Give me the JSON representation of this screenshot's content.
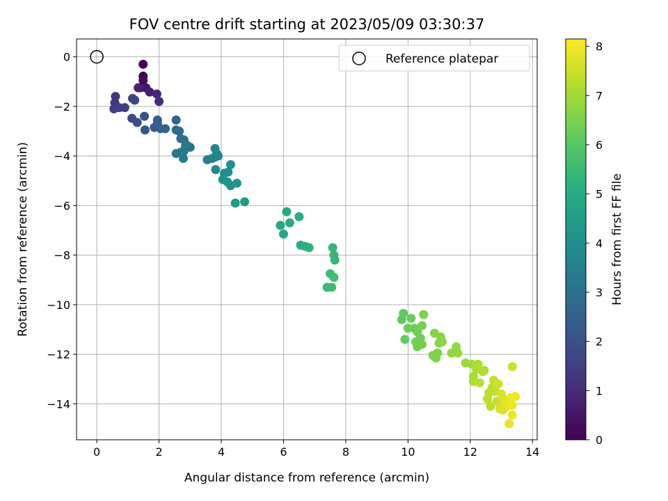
{
  "chart_data": {
    "type": "scatter",
    "title": "FOV centre drift starting at 2023/05/09 03:30:37",
    "xlabel": "Angular distance from reference (arcmin)",
    "ylabel": "Rotation from reference (arcmin)",
    "xlim": [
      -0.65,
      14.15
    ],
    "ylim": [
      -15.45,
      0.72
    ],
    "xticks": [
      0,
      2,
      4,
      6,
      8,
      10,
      12,
      14
    ],
    "yticks": [
      0,
      -2,
      -4,
      -6,
      -8,
      -10,
      -12,
      -14
    ],
    "grid": true,
    "legend": {
      "placement": "top-right",
      "entries": [
        "Reference platepar"
      ]
    },
    "reference_point": {
      "x": 0,
      "y": 0
    },
    "colorbar": {
      "label": "Hours from first FF file",
      "range": [
        0,
        8.15
      ],
      "ticks": [
        0,
        1,
        2,
        3,
        4,
        5,
        6,
        7,
        8
      ],
      "colormap": "viridis"
    },
    "points": [
      {
        "x": 1.49,
        "y": -0.3,
        "h": 0.0
      },
      {
        "x": 1.49,
        "y": -0.78,
        "h": 0.1
      },
      {
        "x": 1.49,
        "y": -0.95,
        "h": 0.2
      },
      {
        "x": 1.4,
        "y": -1.25,
        "h": 0.4
      },
      {
        "x": 1.58,
        "y": -1.25,
        "h": 0.5
      },
      {
        "x": 1.7,
        "y": -1.42,
        "h": 0.7
      },
      {
        "x": 1.33,
        "y": -1.25,
        "h": 0.8
      },
      {
        "x": 1.93,
        "y": -1.5,
        "h": 0.9
      },
      {
        "x": 2.0,
        "y": -1.8,
        "h": 1.0
      },
      {
        "x": 0.6,
        "y": -1.6,
        "h": 1.2
      },
      {
        "x": 0.58,
        "y": -1.85,
        "h": 1.3
      },
      {
        "x": 0.55,
        "y": -2.1,
        "h": 1.4
      },
      {
        "x": 0.72,
        "y": -2.05,
        "h": 1.45
      },
      {
        "x": 0.9,
        "y": -2.05,
        "h": 1.5
      },
      {
        "x": 1.15,
        "y": -1.68,
        "h": 1.6
      },
      {
        "x": 1.22,
        "y": -1.75,
        "h": 1.7
      },
      {
        "x": 1.13,
        "y": -2.48,
        "h": 1.8
      },
      {
        "x": 1.3,
        "y": -2.65,
        "h": 1.9
      },
      {
        "x": 1.53,
        "y": -2.4,
        "h": 2.0
      },
      {
        "x": 1.55,
        "y": -2.95,
        "h": 2.1
      },
      {
        "x": 1.85,
        "y": -2.85,
        "h": 2.2
      },
      {
        "x": 1.95,
        "y": -2.55,
        "h": 2.3
      },
      {
        "x": 1.95,
        "y": -2.7,
        "h": 2.4
      },
      {
        "x": 2.05,
        "y": -2.9,
        "h": 2.5
      },
      {
        "x": 2.2,
        "y": -2.9,
        "h": 2.6
      },
      {
        "x": 2.55,
        "y": -2.55,
        "h": 2.7
      },
      {
        "x": 2.55,
        "y": -2.95,
        "h": 2.8
      },
      {
        "x": 2.65,
        "y": -3.0,
        "h": 2.85
      },
      {
        "x": 2.7,
        "y": -3.3,
        "h": 2.9
      },
      {
        "x": 2.8,
        "y": -3.35,
        "h": 3.0
      },
      {
        "x": 2.88,
        "y": -3.55,
        "h": 3.05
      },
      {
        "x": 3.0,
        "y": -3.65,
        "h": 3.1
      },
      {
        "x": 2.55,
        "y": -3.9,
        "h": 3.15
      },
      {
        "x": 2.7,
        "y": -3.85,
        "h": 3.2
      },
      {
        "x": 2.8,
        "y": -3.8,
        "h": 3.25
      },
      {
        "x": 2.85,
        "y": -3.6,
        "h": 3.3
      },
      {
        "x": 2.78,
        "y": -4.1,
        "h": 3.35
      },
      {
        "x": 3.55,
        "y": -4.15,
        "h": 3.5
      },
      {
        "x": 3.7,
        "y": -4.1,
        "h": 3.55
      },
      {
        "x": 3.8,
        "y": -4.05,
        "h": 3.6
      },
      {
        "x": 3.8,
        "y": -3.7,
        "h": 3.65
      },
      {
        "x": 3.9,
        "y": -4.0,
        "h": 3.7
      },
      {
        "x": 3.85,
        "y": -3.9,
        "h": 3.75
      },
      {
        "x": 3.82,
        "y": -4.55,
        "h": 3.8
      },
      {
        "x": 4.1,
        "y": -4.7,
        "h": 3.9
      },
      {
        "x": 4.22,
        "y": -4.65,
        "h": 3.95
      },
      {
        "x": 4.3,
        "y": -4.35,
        "h": 4.0
      },
      {
        "x": 4.05,
        "y": -4.95,
        "h": 4.05
      },
      {
        "x": 4.2,
        "y": -5.05,
        "h": 4.1
      },
      {
        "x": 4.3,
        "y": -5.2,
        "h": 4.15
      },
      {
        "x": 4.5,
        "y": -5.1,
        "h": 4.2
      },
      {
        "x": 4.45,
        "y": -5.9,
        "h": 4.35
      },
      {
        "x": 4.75,
        "y": -5.85,
        "h": 4.45
      },
      {
        "x": 5.9,
        "y": -6.8,
        "h": 4.85
      },
      {
        "x": 6.0,
        "y": -7.15,
        "h": 4.9
      },
      {
        "x": 6.1,
        "y": -6.25,
        "h": 4.95
      },
      {
        "x": 6.2,
        "y": -6.7,
        "h": 5.0
      },
      {
        "x": 6.5,
        "y": -6.45,
        "h": 5.05
      },
      {
        "x": 6.55,
        "y": -7.6,
        "h": 5.1
      },
      {
        "x": 6.7,
        "y": -7.65,
        "h": 5.15
      },
      {
        "x": 6.82,
        "y": -7.7,
        "h": 5.2
      },
      {
        "x": 7.4,
        "y": -9.3,
        "h": 5.45
      },
      {
        "x": 7.55,
        "y": -9.3,
        "h": 5.5
      },
      {
        "x": 7.5,
        "y": -8.75,
        "h": 5.55
      },
      {
        "x": 7.62,
        "y": -8.9,
        "h": 5.6
      },
      {
        "x": 7.58,
        "y": -7.7,
        "h": 5.35
      },
      {
        "x": 7.62,
        "y": -8.0,
        "h": 5.38
      },
      {
        "x": 7.65,
        "y": -8.2,
        "h": 5.4
      },
      {
        "x": 9.8,
        "y": -10.6,
        "h": 6.1
      },
      {
        "x": 9.85,
        "y": -10.35,
        "h": 6.12
      },
      {
        "x": 9.9,
        "y": -11.4,
        "h": 6.2
      },
      {
        "x": 10.0,
        "y": -10.95,
        "h": 6.25
      },
      {
        "x": 10.1,
        "y": -10.55,
        "h": 6.28
      },
      {
        "x": 10.2,
        "y": -10.95,
        "h": 6.3
      },
      {
        "x": 10.3,
        "y": -11.1,
        "h": 6.32
      },
      {
        "x": 10.25,
        "y": -11.5,
        "h": 6.35
      },
      {
        "x": 10.3,
        "y": -11.7,
        "h": 6.38
      },
      {
        "x": 10.4,
        "y": -11.35,
        "h": 6.4
      },
      {
        "x": 10.45,
        "y": -11.6,
        "h": 6.42
      },
      {
        "x": 10.45,
        "y": -10.85,
        "h": 6.45
      },
      {
        "x": 10.5,
        "y": -10.4,
        "h": 6.48
      },
      {
        "x": 10.8,
        "y": -12.05,
        "h": 6.55
      },
      {
        "x": 10.9,
        "y": -12.15,
        "h": 6.58
      },
      {
        "x": 10.95,
        "y": -11.95,
        "h": 6.6
      },
      {
        "x": 10.85,
        "y": -11.15,
        "h": 6.62
      },
      {
        "x": 11.0,
        "y": -11.55,
        "h": 6.65
      },
      {
        "x": 11.05,
        "y": -11.3,
        "h": 6.68
      },
      {
        "x": 11.1,
        "y": -11.5,
        "h": 6.7
      },
      {
        "x": 11.4,
        "y": -11.95,
        "h": 6.78
      },
      {
        "x": 11.55,
        "y": -11.7,
        "h": 6.8
      },
      {
        "x": 11.6,
        "y": -11.95,
        "h": 6.82
      },
      {
        "x": 11.85,
        "y": -12.35,
        "h": 6.95
      },
      {
        "x": 12.05,
        "y": -12.4,
        "h": 7.0
      },
      {
        "x": 12.1,
        "y": -12.9,
        "h": 7.05
      },
      {
        "x": 12.2,
        "y": -12.6,
        "h": 7.1
      },
      {
        "x": 12.25,
        "y": -12.4,
        "h": 7.12
      },
      {
        "x": 12.4,
        "y": -12.7,
        "h": 7.15
      },
      {
        "x": 12.45,
        "y": -12.65,
        "h": 7.18
      },
      {
        "x": 12.1,
        "y": -13.1,
        "h": 7.2
      },
      {
        "x": 12.3,
        "y": -13.15,
        "h": 7.25
      },
      {
        "x": 12.55,
        "y": -13.8,
        "h": 7.3
      },
      {
        "x": 12.65,
        "y": -14.1,
        "h": 7.35
      },
      {
        "x": 12.7,
        "y": -13.35,
        "h": 7.38
      },
      {
        "x": 12.75,
        "y": -13.05,
        "h": 7.4
      },
      {
        "x": 12.8,
        "y": -13.5,
        "h": 7.45
      },
      {
        "x": 12.85,
        "y": -13.9,
        "h": 7.5
      },
      {
        "x": 12.9,
        "y": -13.2,
        "h": 7.55
      },
      {
        "x": 12.95,
        "y": -14.2,
        "h": 7.6
      },
      {
        "x": 13.0,
        "y": -13.6,
        "h": 7.65
      },
      {
        "x": 13.05,
        "y": -14.25,
        "h": 7.7
      },
      {
        "x": 13.1,
        "y": -13.85,
        "h": 7.75
      },
      {
        "x": 13.15,
        "y": -14.0,
        "h": 7.8
      },
      {
        "x": 13.2,
        "y": -14.1,
        "h": 7.85
      },
      {
        "x": 13.25,
        "y": -14.8,
        "h": 7.9
      },
      {
        "x": 13.3,
        "y": -13.75,
        "h": 7.92
      },
      {
        "x": 13.35,
        "y": -14.45,
        "h": 7.95
      },
      {
        "x": 13.35,
        "y": -14.05,
        "h": 7.98
      },
      {
        "x": 13.45,
        "y": -13.7,
        "h": 8.05
      },
      {
        "x": 13.35,
        "y": -12.5,
        "h": 7.5
      },
      {
        "x": 12.6,
        "y": -13.55,
        "h": 7.32
      }
    ]
  }
}
